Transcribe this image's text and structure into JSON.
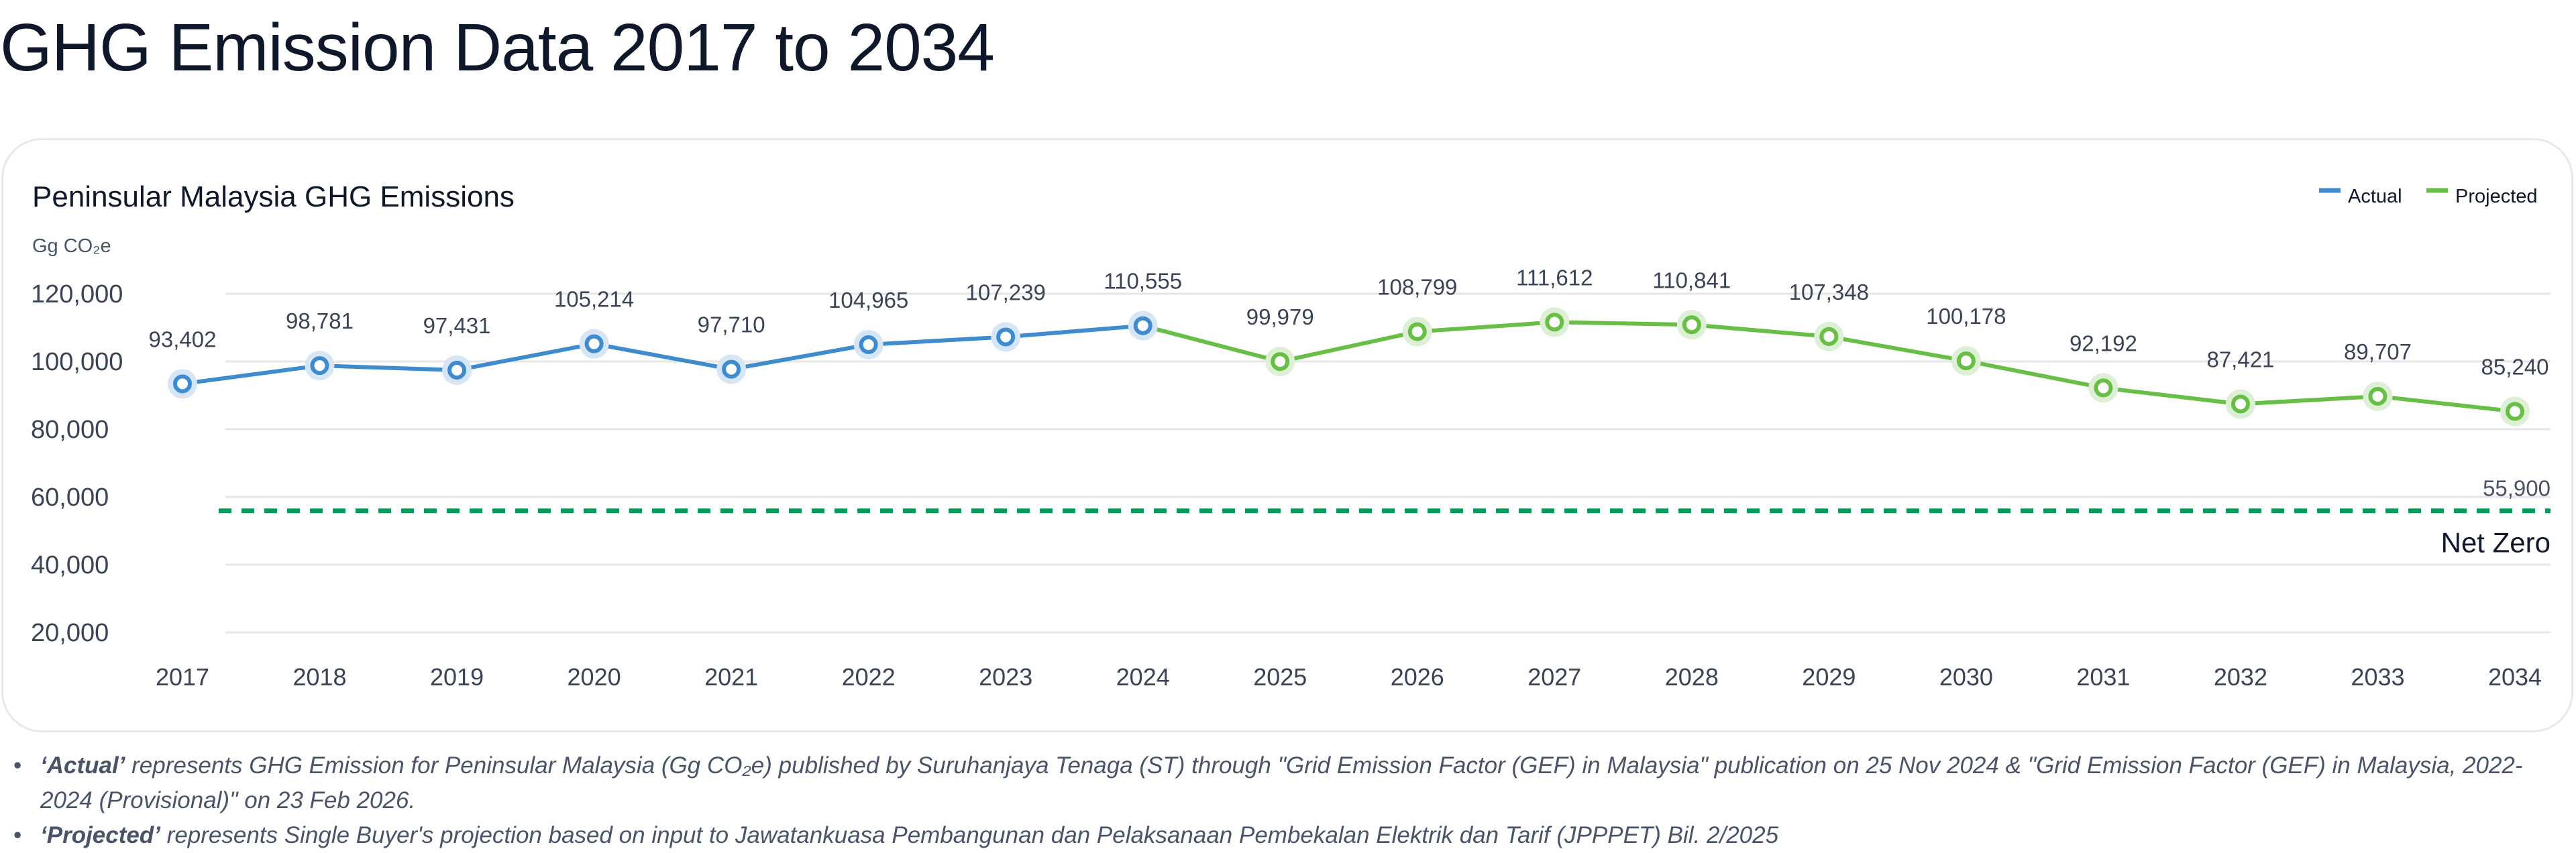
{
  "page_title": "GHG Emission Data 2017 to 2034",
  "chart_data": {
    "type": "line",
    "title": "Peninsular Malaysia GHG Emissions",
    "ylabel": "Gg CO₂e",
    "ylim": [
      20000,
      120000
    ],
    "yticks": [
      "20,000",
      "40,000",
      "60,000",
      "80,000",
      "100,000",
      "120,000"
    ],
    "ytick_values": [
      20000,
      40000,
      60000,
      80000,
      100000,
      120000
    ],
    "grid": true,
    "legend_position": "top-right",
    "categories": [
      "2017",
      "2018",
      "2019",
      "2020",
      "2021",
      "2022",
      "2023",
      "2024",
      "2025",
      "2026",
      "2027",
      "2028",
      "2029",
      "2030",
      "2031",
      "2032",
      "2033",
      "2034"
    ],
    "series": [
      {
        "name": "Actual",
        "color": "#3f8bd0",
        "x": [
          "2017",
          "2018",
          "2019",
          "2020",
          "2021",
          "2022",
          "2023",
          "2024"
        ],
        "values": [
          93402,
          98781,
          97431,
          105214,
          97710,
          104965,
          107239,
          110555
        ],
        "labels": [
          "93,402",
          "98,781",
          "97,431",
          "105,214",
          "97,710",
          "104,965",
          "107,239",
          "110,555"
        ]
      },
      {
        "name": "Projected",
        "color": "#67bf45",
        "x": [
          "2025",
          "2026",
          "2027",
          "2028",
          "2029",
          "2030",
          "2031",
          "2032",
          "2033",
          "2034"
        ],
        "values": [
          99979,
          108799,
          111612,
          110841,
          107348,
          100178,
          92192,
          87421,
          89707,
          85240
        ],
        "labels": [
          "99,979",
          "108,799",
          "111,612",
          "110,841",
          "107,348",
          "100,178",
          "92,192",
          "87,421",
          "89,707",
          "85,240"
        ]
      }
    ],
    "reference_line": {
      "value": 55900,
      "value_label": "55,900",
      "label": "Net Zero",
      "color": "#079a5c",
      "style": "dashed"
    }
  },
  "notes": [
    {
      "term": "‘Actual’",
      "text": " represents GHG Emission for Peninsular Malaysia (Gg CO₂e) published by Suruhanjaya Tenaga (ST) through \"Grid Emission Factor (GEF) in Malaysia\" publication on 25 Nov 2024 & \"Grid Emission Factor (GEF) in Malaysia, 2022-2024 (Provisional)\" on 23 Feb 2026."
    },
    {
      "term": "‘Projected’",
      "text": " represents Single Buyer's projection based on input to Jawatankuasa Pembangunan dan Pelaksanaan Pembekalan Elektrik dan Tarif (JPPPET) Bil. 2/2025"
    }
  ]
}
